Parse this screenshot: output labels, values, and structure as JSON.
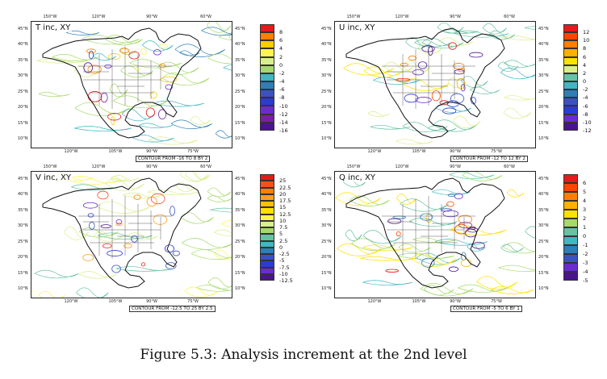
{
  "figure": {
    "caption": "Figure 5.3: Analysis increment at the 2nd level",
    "lon_top_labels": [
      "150°W",
      "120°W",
      "90°W",
      "60°W"
    ],
    "lon_bottom_labels": [
      "120°W",
      "105°W",
      "90°W",
      "75°W"
    ],
    "lat_labels": [
      "45°N",
      "40°N",
      "35°N",
      "30°N",
      "25°N",
      "20°N",
      "15°N",
      "10°N"
    ]
  },
  "chart_data": [
    {
      "type": "heatmap",
      "title": "T inc, XY",
      "contour_note": "CONTOUR FROM -16 TO 8 BY 2",
      "colorbar": {
        "labels": [
          "8",
          "6",
          "4",
          "2",
          "0",
          "-2",
          "-4",
          "-6",
          "-8",
          "-10",
          "-12",
          "-14",
          "-16"
        ],
        "colors": [
          "#e41a1c",
          "#ff7f00",
          "#ffcc00",
          "#fff44f",
          "#d9ef8b",
          "#a6d96a",
          "#41b6c4",
          "#2c7fb8",
          "#3953c4",
          "#2b3bd6",
          "#6a2bd0",
          "#7b1fa2",
          "#4a148c"
        ]
      }
    },
    {
      "type": "heatmap",
      "title": "U inc, XY",
      "contour_note": "CONTOUR FROM -12 TO 12 BY 2",
      "colorbar": {
        "labels": [
          "12",
          "10",
          "8",
          "6",
          "4",
          "2",
          "0",
          "-2",
          "-4",
          "-6",
          "-8",
          "-10",
          "-12"
        ],
        "colors": [
          "#e41a1c",
          "#ff4500",
          "#ff7f00",
          "#ffb000",
          "#ffe100",
          "#d9ef8b",
          "#66c2a4",
          "#41b6c4",
          "#2c7fb8",
          "#3953c4",
          "#2b3bd6",
          "#6a2bd0",
          "#4a148c"
        ]
      }
    },
    {
      "type": "heatmap",
      "title": "V inc, XY",
      "contour_note": "CONTOUR FROM -12.5 TO 25 BY 2.5",
      "colorbar": {
        "labels": [
          "25",
          "22.5",
          "20",
          "17.5",
          "15",
          "12.5",
          "10",
          "7.5",
          "5",
          "2.5",
          "0",
          "-2.5",
          "-5",
          "-7.5",
          "-10",
          "-12.5"
        ],
        "colors": [
          "#e41a1c",
          "#f4511e",
          "#ff7f00",
          "#ff9f1c",
          "#ffc000",
          "#ffe100",
          "#fff44f",
          "#d9ef8b",
          "#a6d96a",
          "#66c2a4",
          "#41b6c4",
          "#2c7fb8",
          "#3953c4",
          "#2b3bd6",
          "#6a2bd0",
          "#4a148c"
        ]
      }
    },
    {
      "type": "heatmap",
      "title": "Q inc, XY",
      "contour_note": "CONTOUR FROM -5 TO 6 BY 1",
      "colorbar": {
        "labels": [
          "6",
          "5",
          "4",
          "3",
          "2",
          "1",
          "0",
          "-1",
          "-2",
          "-3",
          "-4",
          "-5"
        ],
        "colors": [
          "#e41a1c",
          "#ff4500",
          "#ff7f00",
          "#ffb000",
          "#ffe100",
          "#a6d96a",
          "#66c2a4",
          "#41b6c4",
          "#2c7fb8",
          "#3953c4",
          "#6a2bd0",
          "#4a148c"
        ]
      }
    }
  ]
}
